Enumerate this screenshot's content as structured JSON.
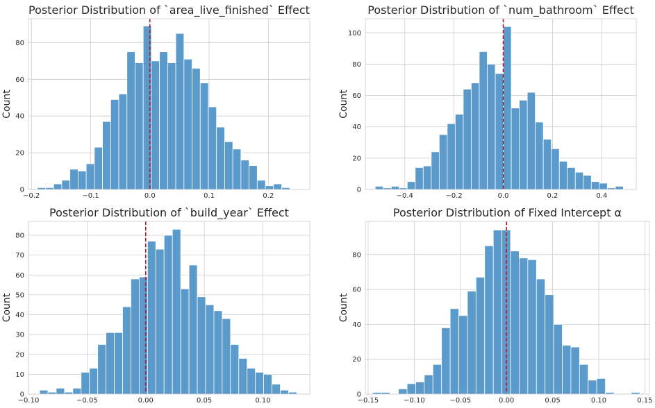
{
  "chart_data": [
    {
      "type": "bar",
      "title": "Posterior Distribution of `area_live_finished` Effect",
      "ylabel": "Count",
      "xlim": [
        -0.205,
        0.27
      ],
      "ylim": [
        0,
        93
      ],
      "xticks": [
        -0.2,
        -0.1,
        0.0,
        0.1,
        0.2
      ],
      "xtick_labels": [
        "−0.2",
        "−0.1",
        "0.0",
        "0.1",
        "0.2"
      ],
      "yticks": [
        0,
        20,
        40,
        60,
        80
      ],
      "ref_line_x": 0.0,
      "bin_start": -0.19,
      "bin_width": 0.01375,
      "values": [
        1,
        1,
        3,
        5,
        11,
        10,
        14,
        23,
        37,
        49,
        52,
        75,
        69,
        89,
        70,
        75,
        69,
        85,
        71,
        66,
        58,
        45,
        34,
        26,
        22,
        16,
        13,
        5,
        2,
        3,
        1,
        0
      ]
    },
    {
      "type": "bar",
      "title": "Posterior Distribution of `num_bathroom` Effect",
      "ylabel": "Count",
      "xlim": [
        -0.56,
        0.54
      ],
      "ylim": [
        0,
        109
      ],
      "xticks": [
        -0.4,
        -0.2,
        0.0,
        0.2,
        0.4
      ],
      "xtick_labels": [
        "−0.4",
        "−0.2",
        "0.0",
        "0.2",
        "0.4"
      ],
      "yticks": [
        0,
        20,
        40,
        60,
        80,
        100
      ],
      "ref_line_x": 0.0,
      "bin_start": -0.52,
      "bin_width": 0.0325,
      "values": [
        2,
        1,
        2,
        1,
        5,
        14,
        15,
        24,
        35,
        42,
        48,
        64,
        68,
        88,
        80,
        74,
        104,
        52,
        57,
        62,
        43,
        32,
        26,
        18,
        14,
        11,
        9,
        5,
        4,
        1,
        2
      ]
    },
    {
      "type": "bar",
      "title": "Posterior Distribution of `build_year` Effect",
      "ylabel": "Count",
      "xlim": [
        -0.1,
        0.14
      ],
      "ylim": [
        0,
        87
      ],
      "xticks": [
        -0.1,
        -0.05,
        0.0,
        0.05,
        0.1
      ],
      "xtick_labels": [
        "−0.10",
        "−0.05",
        "0.00",
        "0.05",
        "0.10"
      ],
      "yticks": [
        0,
        10,
        20,
        30,
        40,
        50,
        60,
        70,
        80
      ],
      "ref_line_x": 0.0,
      "bin_start": -0.0905,
      "bin_width": 0.00708,
      "values": [
        2,
        1,
        3,
        1,
        3,
        11,
        13,
        25,
        31,
        31,
        44,
        58,
        59,
        77,
        73,
        80,
        83,
        53,
        65,
        49,
        45,
        42,
        38,
        25,
        18,
        13,
        11,
        10,
        5,
        2,
        1
      ]
    },
    {
      "type": "bar",
      "title": "Posterior Distribution of Fixed Intercept α",
      "ylabel": "Count",
      "xlim": [
        -0.153,
        0.155
      ],
      "ylim": [
        0,
        99
      ],
      "xticks": [
        -0.15,
        -0.1,
        -0.05,
        0.0,
        0.05,
        0.1,
        0.15
      ],
      "xtick_labels": [
        "−0.15",
        "−0.10",
        "−0.05",
        "0.00",
        "0.05",
        "0.10",
        "0.15"
      ],
      "yticks": [
        0,
        20,
        40,
        60,
        80
      ],
      "ref_line_x": 0.0,
      "bin_start": -0.1452,
      "bin_width": 0.00935,
      "values": [
        1,
        1,
        0,
        3,
        6,
        7,
        11,
        17,
        38,
        49,
        45,
        59,
        67,
        85,
        94,
        94,
        82,
        78,
        77,
        66,
        57,
        40,
        28,
        27,
        17,
        8,
        9,
        1,
        0,
        0,
        1
      ]
    }
  ]
}
